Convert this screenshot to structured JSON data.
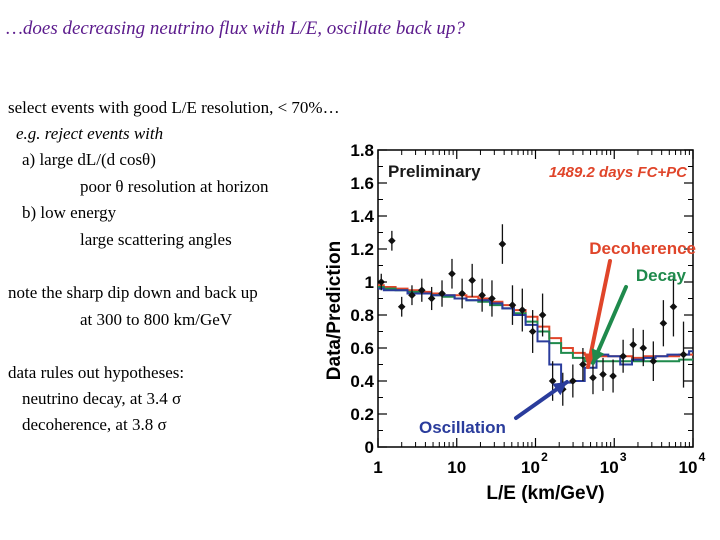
{
  "slide": {
    "title": "…does decreasing neutrino flux with L/E, oscillate back up?",
    "lines": [
      "select events with good L/E resolution, < 70%…",
      "e.g. reject events with",
      "a) large dL/(d cosθ)",
      "poor θ resolution at horizon",
      "b) low energy",
      "large scattering angles",
      "note the sharp dip down and back up",
      "at 300 to 800 km/GeV",
      "data rules out hypotheses:",
      "neutrino decay, at 3.4 σ",
      "decoherence,   at 3.8 σ"
    ]
  },
  "chart_data": {
    "type": "line",
    "title": "",
    "xlabel": "L/E  (km/GeV)",
    "ylabel": "Data/Prediction",
    "x_scale": "log",
    "xlim": [
      1,
      10000
    ],
    "ylim": [
      0,
      1.8
    ],
    "x_ticks": [
      {
        "base": "1",
        "exp": ""
      },
      {
        "base": "10",
        "exp": ""
      },
      {
        "base": "10",
        "exp": "2"
      },
      {
        "base": "10",
        "exp": "3"
      },
      {
        "base": "10",
        "exp": "4"
      }
    ],
    "y_ticks": [
      "0",
      "0.2",
      "0.4",
      "0.6",
      "0.8",
      "1",
      "1.2",
      "1.4",
      "1.6",
      "1.8"
    ],
    "annotations": {
      "preliminary": "Preliminary",
      "exposure": "1489.2 days FC+PC",
      "decoherence": "Decoherence",
      "decay": "Decay",
      "oscillation": "Oscillation"
    },
    "colors": {
      "decoherence": "#e0452a",
      "decay": "#1f8a4c",
      "oscillation": "#2a3c9c",
      "data": "#111111",
      "preliminary": "#1a1a1a",
      "exposure": "#e0452a"
    },
    "series": [
      {
        "name": "Decoherence",
        "x": [
          1,
          1.4,
          2,
          2.8,
          4,
          5.6,
          8,
          11,
          16,
          22,
          32,
          45,
          63,
          89,
          126,
          178,
          251,
          355,
          501,
          708,
          1000,
          1413,
          1995,
          2818,
          3981,
          5623,
          7943,
          10000
        ],
        "y": [
          0.98,
          0.97,
          0.96,
          0.95,
          0.94,
          0.93,
          0.92,
          0.92,
          0.91,
          0.9,
          0.88,
          0.86,
          0.83,
          0.79,
          0.73,
          0.66,
          0.6,
          0.57,
          0.56,
          0.55,
          0.55,
          0.55,
          0.54,
          0.55,
          0.55,
          0.55,
          0.56,
          0.56
        ]
      },
      {
        "name": "Decay",
        "x": [
          1,
          1.4,
          2,
          2.8,
          4,
          5.6,
          8,
          11,
          16,
          22,
          32,
          45,
          63,
          89,
          126,
          178,
          251,
          355,
          501,
          708,
          1000,
          1413,
          1995,
          2818,
          3981,
          5623,
          7943,
          10000
        ],
        "y": [
          0.97,
          0.96,
          0.95,
          0.94,
          0.93,
          0.92,
          0.91,
          0.9,
          0.89,
          0.88,
          0.86,
          0.84,
          0.81,
          0.76,
          0.7,
          0.63,
          0.57,
          0.54,
          0.52,
          0.52,
          0.52,
          0.52,
          0.52,
          0.52,
          0.52,
          0.52,
          0.53,
          0.53
        ]
      },
      {
        "name": "Oscillation",
        "x": [
          1,
          1.4,
          2,
          2.8,
          4,
          5.6,
          8,
          11,
          16,
          22,
          32,
          45,
          63,
          89,
          126,
          178,
          251,
          355,
          501,
          708,
          1000,
          1413,
          1995,
          2818,
          3981,
          5623,
          7943,
          10000
        ],
        "y": [
          0.96,
          0.95,
          0.95,
          0.93,
          0.93,
          0.92,
          0.92,
          0.9,
          0.89,
          0.89,
          0.87,
          0.84,
          0.8,
          0.74,
          0.64,
          0.5,
          0.39,
          0.4,
          0.48,
          0.56,
          0.55,
          0.5,
          0.53,
          0.54,
          0.55,
          0.56,
          0.56,
          0.58
        ]
      },
      {
        "name": "Data",
        "x": [
          1.1,
          1.5,
          2,
          2.7,
          3.6,
          4.8,
          6.5,
          8.7,
          11.7,
          15.7,
          21,
          28,
          38,
          51,
          68,
          92,
          123,
          165,
          222,
          298,
          400,
          537,
          720,
          966,
          1296,
          1740,
          2336,
          3135,
          4207,
          5646,
          7578
        ],
        "y": [
          1.0,
          1.25,
          0.85,
          0.92,
          0.95,
          0.9,
          0.93,
          1.05,
          0.93,
          1.01,
          0.92,
          0.9,
          1.23,
          0.86,
          0.83,
          0.7,
          0.8,
          0.4,
          0.35,
          0.4,
          0.5,
          0.42,
          0.44,
          0.43,
          0.55,
          0.62,
          0.6,
          0.52,
          0.75,
          0.85,
          0.56
        ],
        "err": [
          0.05,
          0.06,
          0.06,
          0.06,
          0.07,
          0.07,
          0.08,
          0.09,
          0.09,
          0.1,
          0.1,
          0.11,
          0.12,
          0.12,
          0.13,
          0.13,
          0.13,
          0.12,
          0.1,
          0.1,
          0.1,
          0.1,
          0.1,
          0.1,
          0.1,
          0.1,
          0.11,
          0.12,
          0.14,
          0.18,
          0.2
        ]
      }
    ]
  }
}
